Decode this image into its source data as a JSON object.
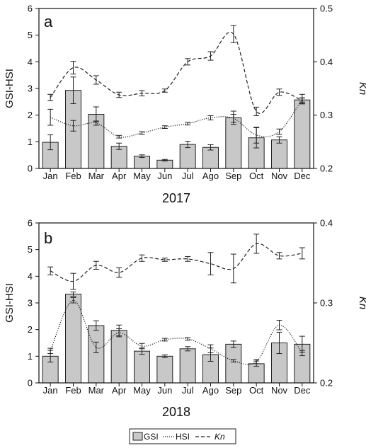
{
  "legend": {
    "gsi": "GSI",
    "hsi": "HSI",
    "kn": "Kn"
  },
  "colors": {
    "bar_fill": "#c8c8c8",
    "bar_stroke": "#222222",
    "line": "#222222",
    "background": "#ffffff"
  },
  "chart_data": [
    {
      "type": "bar",
      "panel_label": "a",
      "xlabel": "2017",
      "ylabel": "GSI-HSI",
      "y2label": "Kn",
      "categories": [
        "Jan",
        "Feb",
        "Mar",
        "Apr",
        "May",
        "Jun",
        "Jul",
        "Ago",
        "Sep",
        "Oct",
        "Nov",
        "Dec"
      ],
      "ylim": [
        0,
        6
      ],
      "yticks": [
        "0",
        "1",
        "2",
        "3",
        "4",
        "5",
        "6"
      ],
      "y2lim": [
        0.2,
        0.5
      ],
      "y2ticks": [
        "0.2",
        "0.3",
        "0.4",
        "0.5"
      ],
      "grid": false,
      "legend_position": "bottom-center",
      "series": [
        {
          "name": "GSI",
          "type": "bar",
          "axis": "left",
          "values": [
            0.98,
            2.93,
            2.03,
            0.83,
            0.46,
            0.31,
            0.9,
            0.79,
            1.9,
            1.15,
            1.07,
            2.57
          ],
          "errors": [
            0.28,
            0.5,
            0.28,
            0.12,
            0.05,
            0.03,
            0.12,
            0.1,
            0.25,
            0.38,
            0.12,
            0.08
          ]
        },
        {
          "name": "HSI",
          "type": "line",
          "style": "dotted",
          "axis": "left",
          "values": [
            1.92,
            1.6,
            1.7,
            1.19,
            1.33,
            1.55,
            1.68,
            1.9,
            1.88,
            1.25,
            1.38,
            2.6
          ],
          "errors": [
            0.3,
            0.2,
            0.08,
            0.05,
            0.05,
            0.05,
            0.05,
            0.08,
            0.15,
            0.3,
            0.1,
            0.18
          ]
        },
        {
          "name": "Kn",
          "type": "line",
          "style": "dashed",
          "axis": "right",
          "values": [
            0.333,
            0.389,
            0.366,
            0.338,
            0.341,
            0.346,
            0.4,
            0.411,
            0.452,
            0.307,
            0.343,
            0.327
          ],
          "errors": [
            0.006,
            0.012,
            0.008,
            0.005,
            0.005,
            0.003,
            0.006,
            0.008,
            0.016,
            0.008,
            0.006,
            0.005
          ]
        }
      ]
    },
    {
      "type": "bar",
      "panel_label": "b",
      "xlabel": "2018",
      "ylabel": "GSI-HSI",
      "y2label": "Kn",
      "categories": [
        "Jan",
        "Feb",
        "Mar",
        "Apr",
        "May",
        "Jun",
        "Jul",
        "Ago",
        "Sep",
        "Oct",
        "Nov",
        "Dec"
      ],
      "ylim": [
        0,
        6
      ],
      "yticks": [
        "0",
        "1",
        "2",
        "3",
        "4",
        "5",
        "6"
      ],
      "y2lim": [
        0.2,
        0.4
      ],
      "y2ticks": [
        "0.2",
        "0.3",
        "0.4"
      ],
      "grid": false,
      "legend_position": "bottom-center",
      "series": [
        {
          "name": "GSI",
          "type": "bar",
          "axis": "left",
          "values": [
            1.0,
            3.33,
            2.15,
            1.97,
            1.19,
            1.0,
            1.28,
            1.06,
            1.45,
            0.72,
            1.5,
            1.45
          ],
          "errors": [
            0.22,
            0.08,
            0.18,
            0.2,
            0.12,
            0.05,
            0.08,
            0.25,
            0.12,
            0.1,
            0.4,
            0.3
          ]
        },
        {
          "name": "HSI",
          "type": "line",
          "style": "dotted",
          "axis": "left",
          "values": [
            1.2,
            3.1,
            1.33,
            1.88,
            1.38,
            1.62,
            1.65,
            1.28,
            0.83,
            0.8,
            2.17,
            1.12
          ],
          "errors": [
            0.1,
            0.1,
            0.2,
            0.15,
            0.1,
            0.05,
            0.05,
            0.15,
            0.05,
            0.08,
            0.18,
            0.1
          ]
        },
        {
          "name": "Kn",
          "type": "line",
          "style": "dashed",
          "axis": "right",
          "values": [
            0.34,
            0.327,
            0.347,
            0.338,
            0.356,
            0.354,
            0.355,
            0.349,
            0.343,
            0.374,
            0.359,
            0.362
          ],
          "errors": [
            0.005,
            0.01,
            0.005,
            0.006,
            0.004,
            0.002,
            0.003,
            0.014,
            0.018,
            0.012,
            0.004,
            0.007
          ]
        }
      ]
    }
  ]
}
